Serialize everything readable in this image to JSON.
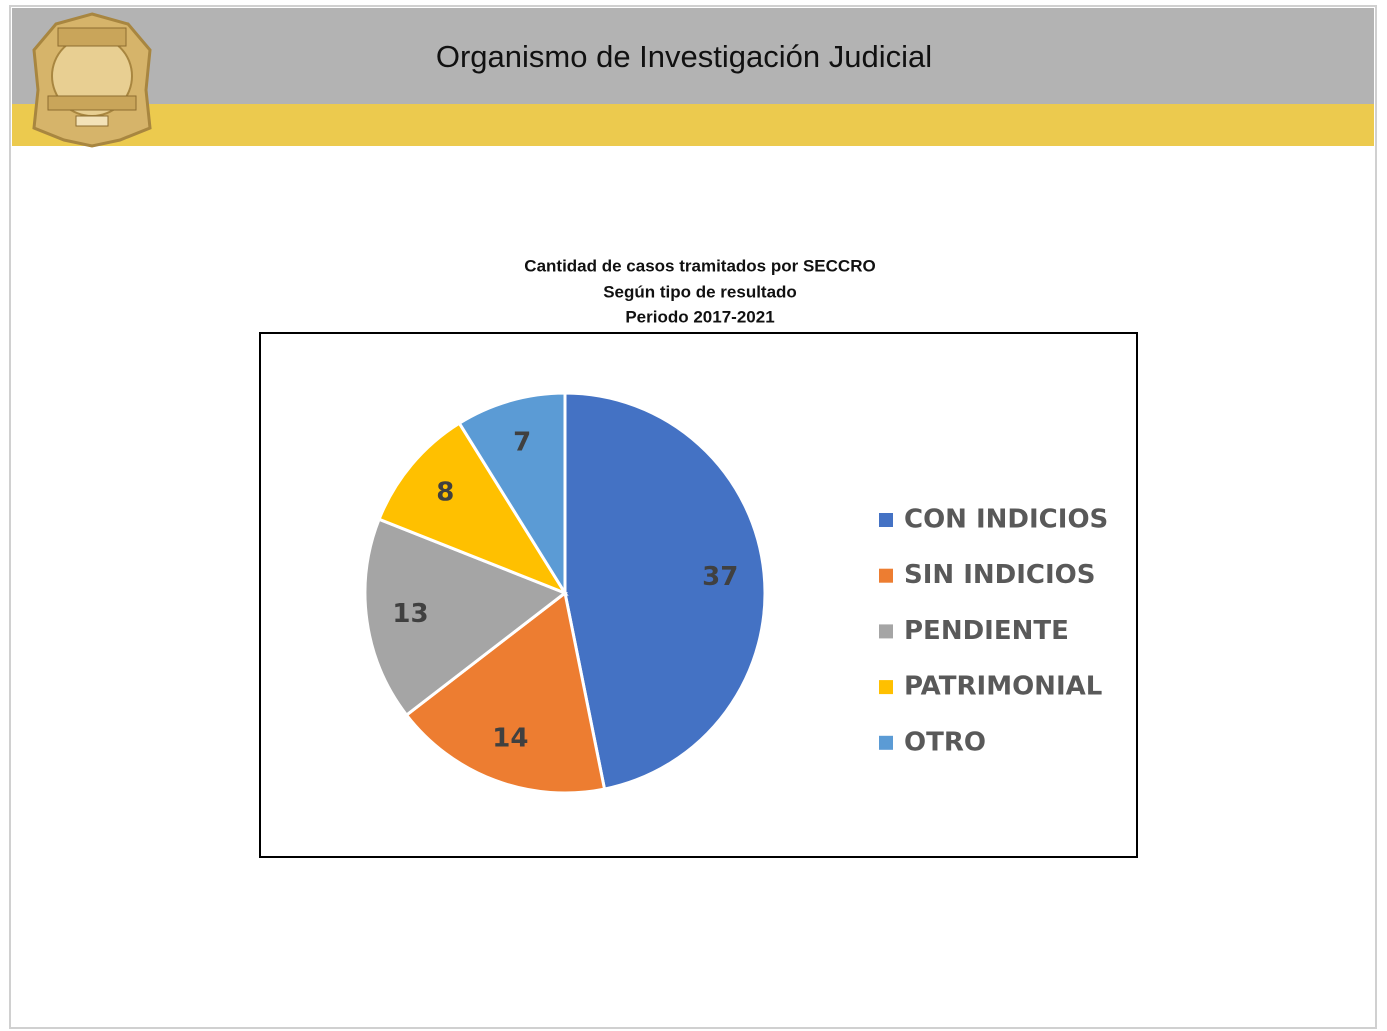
{
  "header": {
    "title": "Organismo de Investigación Judicial"
  },
  "chart_data": {
    "type": "pie",
    "title": "Cantidad de casos tramitados por SECCRO",
    "subtitle": [
      "Según tipo de resultado",
      "Periodo 2017-2021"
    ],
    "categories": [
      "CON INDICIOS",
      "SIN INDICIOS",
      "PENDIENTE",
      "PATRIMONIAL",
      "OTRO"
    ],
    "values": [
      37,
      14,
      13,
      8,
      7
    ],
    "colors": [
      "#4472c4",
      "#ed7d31",
      "#a5a5a5",
      "#ffc000",
      "#5b9bd5"
    ],
    "legend": "right"
  }
}
